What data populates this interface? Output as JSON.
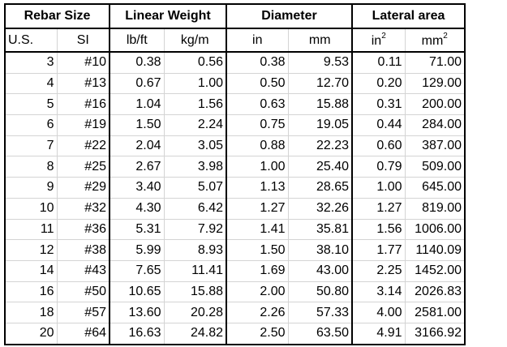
{
  "table": {
    "groups": [
      "Rebar Size",
      "Linear Weight",
      "Diameter",
      "Lateral area"
    ],
    "units": [
      "U.S.",
      "SI",
      "lb/ft",
      "kg/m",
      "in",
      "mm",
      {
        "base": "in",
        "sup": "2"
      },
      {
        "base": "mm",
        "sup": "2"
      }
    ],
    "rows": [
      [
        "3",
        "#10",
        "0.38",
        "0.56",
        "0.38",
        "9.53",
        "0.11",
        "71.00"
      ],
      [
        "4",
        "#13",
        "0.67",
        "1.00",
        "0.50",
        "12.70",
        "0.20",
        "129.00"
      ],
      [
        "5",
        "#16",
        "1.04",
        "1.56",
        "0.63",
        "15.88",
        "0.31",
        "200.00"
      ],
      [
        "6",
        "#19",
        "1.50",
        "2.24",
        "0.75",
        "19.05",
        "0.44",
        "284.00"
      ],
      [
        "7",
        "#22",
        "2.04",
        "3.05",
        "0.88",
        "22.23",
        "0.60",
        "387.00"
      ],
      [
        "8",
        "#25",
        "2.67",
        "3.98",
        "1.00",
        "25.40",
        "0.79",
        "509.00"
      ],
      [
        "9",
        "#29",
        "3.40",
        "5.07",
        "1.13",
        "28.65",
        "1.00",
        "645.00"
      ],
      [
        "10",
        "#32",
        "4.30",
        "6.42",
        "1.27",
        "32.26",
        "1.27",
        "819.00"
      ],
      [
        "11",
        "#36",
        "5.31",
        "7.92",
        "1.41",
        "35.81",
        "1.56",
        "1006.00"
      ],
      [
        "12",
        "#38",
        "5.99",
        "8.93",
        "1.50",
        "38.10",
        "1.77",
        "1140.09"
      ],
      [
        "14",
        "#43",
        "7.65",
        "11.41",
        "1.69",
        "43.00",
        "2.25",
        "1452.00"
      ],
      [
        "16",
        "#50",
        "10.65",
        "15.88",
        "2.00",
        "50.80",
        "3.14",
        "2026.83"
      ],
      [
        "18",
        "#57",
        "13.60",
        "20.28",
        "2.26",
        "57.33",
        "4.00",
        "2581.00"
      ],
      [
        "20",
        "#64",
        "16.63",
        "24.82",
        "2.50",
        "63.50",
        "4.91",
        "3166.92"
      ]
    ]
  }
}
